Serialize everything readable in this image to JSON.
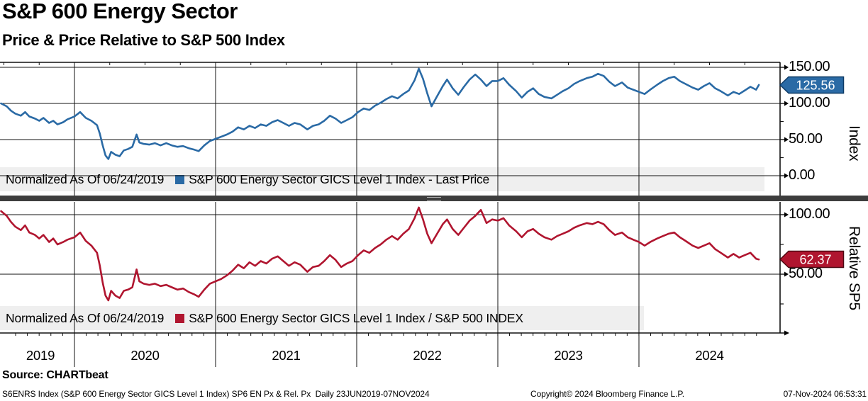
{
  "header": {
    "title": "S&P 600 Energy Sector",
    "subtitle": "Price & Price Relative to S&P 500 Index"
  },
  "xaxis": {
    "year_labels": [
      "2019",
      "2020",
      "2021",
      "2022",
      "2023",
      "2024"
    ],
    "gridline_years": [
      2020,
      2021,
      2022,
      2023,
      2024
    ],
    "range_note": "23JUN2019-07NOV2024"
  },
  "footer": {
    "source": "Source: CHARTbeat",
    "ticker_line": "S6ENRS Index (S&P 600 Energy Sector GICS Level 1 Index) SP6 EN Px & Rel. Px  Daily 23JUN2019-07NOV2024",
    "copyright": "Copyright© 2024 Bloomberg Finance L.P.",
    "timestamp": "07-Nov-2024 06:53:31"
  },
  "chart_data": [
    {
      "type": "line",
      "panel": "price",
      "axis_title": "Index",
      "legend_normalized": "Normalized As Of 06/24/2019",
      "legend_series": "S&P 600 Energy Sector GICS Level 1 Index - Last Price",
      "color": "#2a6aa5",
      "badge_stroke": "#0d3a66",
      "last_value": 125.56,
      "last_label": "125.56",
      "x_unit": "decimal_year",
      "x_range": [
        2019.48,
        2024.85
      ],
      "ylim": [
        -27,
        157
      ],
      "yticks": [
        {
          "v": 150,
          "label": "150.00"
        },
        {
          "v": 100,
          "label": "100.00"
        },
        {
          "v": 50,
          "label": "50.00"
        },
        {
          "v": 0,
          "label": "0.00"
        }
      ],
      "yticks_minor": [
        125,
        75,
        25
      ],
      "points": [
        [
          2019.48,
          100
        ],
        [
          2019.52,
          96
        ],
        [
          2019.55,
          90
        ],
        [
          2019.58,
          86
        ],
        [
          2019.62,
          83
        ],
        [
          2019.65,
          88
        ],
        [
          2019.68,
          82
        ],
        [
          2019.72,
          79
        ],
        [
          2019.75,
          76
        ],
        [
          2019.78,
          80
        ],
        [
          2019.82,
          73
        ],
        [
          2019.85,
          76
        ],
        [
          2019.88,
          71
        ],
        [
          2019.92,
          74
        ],
        [
          2019.95,
          78
        ],
        [
          2020.0,
          82
        ],
        [
          2020.04,
          88
        ],
        [
          2020.08,
          80
        ],
        [
          2020.12,
          76
        ],
        [
          2020.16,
          70
        ],
        [
          2020.18,
          58
        ],
        [
          2020.2,
          42
        ],
        [
          2020.22,
          28
        ],
        [
          2020.24,
          23
        ],
        [
          2020.26,
          33
        ],
        [
          2020.29,
          29
        ],
        [
          2020.32,
          27
        ],
        [
          2020.35,
          35
        ],
        [
          2020.38,
          37
        ],
        [
          2020.41,
          40
        ],
        [
          2020.44,
          57
        ],
        [
          2020.46,
          46
        ],
        [
          2020.49,
          44
        ],
        [
          2020.53,
          43
        ],
        [
          2020.57,
          45
        ],
        [
          2020.61,
          42
        ],
        [
          2020.65,
          45
        ],
        [
          2020.69,
          42
        ],
        [
          2020.73,
          40
        ],
        [
          2020.77,
          41
        ],
        [
          2020.81,
          38
        ],
        [
          2020.85,
          36
        ],
        [
          2020.88,
          34
        ],
        [
          2020.92,
          42
        ],
        [
          2020.96,
          48
        ],
        [
          2021.0,
          51
        ],
        [
          2021.04,
          54
        ],
        [
          2021.08,
          57
        ],
        [
          2021.12,
          61
        ],
        [
          2021.16,
          67
        ],
        [
          2021.2,
          64
        ],
        [
          2021.24,
          69
        ],
        [
          2021.28,
          66
        ],
        [
          2021.32,
          71
        ],
        [
          2021.36,
          69
        ],
        [
          2021.4,
          74
        ],
        [
          2021.44,
          77
        ],
        [
          2021.48,
          73
        ],
        [
          2021.52,
          69
        ],
        [
          2021.56,
          73
        ],
        [
          2021.6,
          71
        ],
        [
          2021.65,
          64
        ],
        [
          2021.69,
          69
        ],
        [
          2021.73,
          71
        ],
        [
          2021.77,
          76
        ],
        [
          2021.81,
          83
        ],
        [
          2021.85,
          79
        ],
        [
          2021.89,
          73
        ],
        [
          2021.93,
          77
        ],
        [
          2021.97,
          81
        ],
        [
          2022.01,
          88
        ],
        [
          2022.05,
          93
        ],
        [
          2022.09,
          91
        ],
        [
          2022.13,
          97
        ],
        [
          2022.17,
          101
        ],
        [
          2022.21,
          106
        ],
        [
          2022.25,
          110
        ],
        [
          2022.29,
          107
        ],
        [
          2022.33,
          113
        ],
        [
          2022.37,
          118
        ],
        [
          2022.41,
          132
        ],
        [
          2022.44,
          148
        ],
        [
          2022.47,
          134
        ],
        [
          2022.5,
          114
        ],
        [
          2022.53,
          96
        ],
        [
          2022.57,
          110
        ],
        [
          2022.61,
          124
        ],
        [
          2022.64,
          133
        ],
        [
          2022.68,
          121
        ],
        [
          2022.72,
          112
        ],
        [
          2022.76,
          123
        ],
        [
          2022.8,
          133
        ],
        [
          2022.84,
          140
        ],
        [
          2022.88,
          133
        ],
        [
          2022.92,
          124
        ],
        [
          2022.96,
          131
        ],
        [
          2023.0,
          131
        ],
        [
          2023.04,
          135
        ],
        [
          2023.08,
          126
        ],
        [
          2023.13,
          117
        ],
        [
          2023.17,
          108
        ],
        [
          2023.21,
          116
        ],
        [
          2023.25,
          121
        ],
        [
          2023.29,
          113
        ],
        [
          2023.33,
          109
        ],
        [
          2023.38,
          107
        ],
        [
          2023.42,
          112
        ],
        [
          2023.46,
          117
        ],
        [
          2023.5,
          121
        ],
        [
          2023.54,
          127
        ],
        [
          2023.58,
          131
        ],
        [
          2023.63,
          135
        ],
        [
          2023.67,
          137
        ],
        [
          2023.71,
          141
        ],
        [
          2023.75,
          138
        ],
        [
          2023.79,
          130
        ],
        [
          2023.83,
          124
        ],
        [
          2023.88,
          129
        ],
        [
          2023.92,
          122
        ],
        [
          2023.96,
          119
        ],
        [
          2024.0,
          116
        ],
        [
          2024.04,
          113
        ],
        [
          2024.08,
          119
        ],
        [
          2024.13,
          126
        ],
        [
          2024.17,
          131
        ],
        [
          2024.21,
          135
        ],
        [
          2024.25,
          137
        ],
        [
          2024.29,
          131
        ],
        [
          2024.33,
          127
        ],
        [
          2024.38,
          122
        ],
        [
          2024.42,
          119
        ],
        [
          2024.46,
          124
        ],
        [
          2024.5,
          128
        ],
        [
          2024.54,
          121
        ],
        [
          2024.58,
          117
        ],
        [
          2024.63,
          111
        ],
        [
          2024.67,
          116
        ],
        [
          2024.71,
          113
        ],
        [
          2024.75,
          118
        ],
        [
          2024.79,
          123
        ],
        [
          2024.83,
          119
        ],
        [
          2024.85,
          125.56
        ]
      ]
    },
    {
      "type": "line",
      "panel": "relative",
      "axis_title": "Relative SP5",
      "legend_normalized": "Normalized As Of 06/24/2019",
      "legend_series": "S&P 600 Energy Sector GICS Level 1 Index / S&P 500 INDEX",
      "color": "#b0152f",
      "badge_stroke": "#4d0812",
      "last_value": 62.37,
      "last_label": "62.37",
      "x_unit": "decimal_year",
      "x_range": [
        2019.48,
        2024.85
      ],
      "ylim": [
        0,
        111
      ],
      "yticks": [
        {
          "v": 100,
          "label": "100.00"
        },
        {
          "v": 50,
          "label": "50.00"
        }
      ],
      "yticks_minor": [
        75,
        25
      ],
      "points": [
        [
          2019.48,
          103
        ],
        [
          2019.52,
          99
        ],
        [
          2019.55,
          94
        ],
        [
          2019.58,
          90
        ],
        [
          2019.62,
          87
        ],
        [
          2019.65,
          91
        ],
        [
          2019.68,
          85
        ],
        [
          2019.72,
          83
        ],
        [
          2019.75,
          80
        ],
        [
          2019.78,
          83
        ],
        [
          2019.82,
          77
        ],
        [
          2019.85,
          80
        ],
        [
          2019.88,
          75
        ],
        [
          2019.92,
          77
        ],
        [
          2019.95,
          79
        ],
        [
          2020.0,
          81
        ],
        [
          2020.04,
          85
        ],
        [
          2020.08,
          78
        ],
        [
          2020.12,
          74
        ],
        [
          2020.16,
          68
        ],
        [
          2020.18,
          57
        ],
        [
          2020.2,
          43
        ],
        [
          2020.22,
          32
        ],
        [
          2020.24,
          28
        ],
        [
          2020.26,
          36
        ],
        [
          2020.29,
          32
        ],
        [
          2020.32,
          30
        ],
        [
          2020.35,
          36
        ],
        [
          2020.38,
          37
        ],
        [
          2020.41,
          39
        ],
        [
          2020.44,
          54
        ],
        [
          2020.46,
          44
        ],
        [
          2020.49,
          42
        ],
        [
          2020.53,
          41
        ],
        [
          2020.57,
          42
        ],
        [
          2020.61,
          40
        ],
        [
          2020.65,
          41
        ],
        [
          2020.69,
          39
        ],
        [
          2020.73,
          37
        ],
        [
          2020.77,
          38
        ],
        [
          2020.81,
          35
        ],
        [
          2020.85,
          33
        ],
        [
          2020.88,
          31
        ],
        [
          2020.92,
          37
        ],
        [
          2020.96,
          42
        ],
        [
          2021.0,
          44
        ],
        [
          2021.04,
          46
        ],
        [
          2021.08,
          49
        ],
        [
          2021.12,
          53
        ],
        [
          2021.16,
          58
        ],
        [
          2021.2,
          55
        ],
        [
          2021.24,
          60
        ],
        [
          2021.28,
          57
        ],
        [
          2021.32,
          61
        ],
        [
          2021.36,
          59
        ],
        [
          2021.4,
          63
        ],
        [
          2021.44,
          65
        ],
        [
          2021.48,
          61
        ],
        [
          2021.52,
          57
        ],
        [
          2021.56,
          60
        ],
        [
          2021.6,
          58
        ],
        [
          2021.65,
          52
        ],
        [
          2021.69,
          56
        ],
        [
          2021.73,
          57
        ],
        [
          2021.77,
          61
        ],
        [
          2021.81,
          66
        ],
        [
          2021.85,
          62
        ],
        [
          2021.89,
          56
        ],
        [
          2021.93,
          59
        ],
        [
          2021.97,
          61
        ],
        [
          2022.01,
          66
        ],
        [
          2022.05,
          70
        ],
        [
          2022.09,
          68
        ],
        [
          2022.13,
          72
        ],
        [
          2022.17,
          75
        ],
        [
          2022.21,
          79
        ],
        [
          2022.25,
          82
        ],
        [
          2022.29,
          79
        ],
        [
          2022.33,
          84
        ],
        [
          2022.37,
          88
        ],
        [
          2022.41,
          97
        ],
        [
          2022.44,
          106
        ],
        [
          2022.47,
          96
        ],
        [
          2022.5,
          84
        ],
        [
          2022.53,
          76
        ],
        [
          2022.57,
          84
        ],
        [
          2022.61,
          92
        ],
        [
          2022.64,
          96
        ],
        [
          2022.68,
          88
        ],
        [
          2022.72,
          83
        ],
        [
          2022.76,
          89
        ],
        [
          2022.8,
          95
        ],
        [
          2022.84,
          99
        ],
        [
          2022.88,
          104
        ],
        [
          2022.92,
          93
        ],
        [
          2022.96,
          96
        ],
        [
          2023.0,
          95
        ],
        [
          2023.04,
          97
        ],
        [
          2023.08,
          91
        ],
        [
          2023.13,
          86
        ],
        [
          2023.17,
          81
        ],
        [
          2023.21,
          86
        ],
        [
          2023.25,
          88
        ],
        [
          2023.29,
          84
        ],
        [
          2023.33,
          81
        ],
        [
          2023.38,
          79
        ],
        [
          2023.42,
          82
        ],
        [
          2023.46,
          84
        ],
        [
          2023.5,
          86
        ],
        [
          2023.54,
          89
        ],
        [
          2023.58,
          91
        ],
        [
          2023.63,
          93
        ],
        [
          2023.67,
          92
        ],
        [
          2023.71,
          94
        ],
        [
          2023.75,
          92
        ],
        [
          2023.79,
          87
        ],
        [
          2023.83,
          83
        ],
        [
          2023.88,
          85
        ],
        [
          2023.92,
          81
        ],
        [
          2023.96,
          79
        ],
        [
          2024.0,
          77
        ],
        [
          2024.04,
          74
        ],
        [
          2024.08,
          77
        ],
        [
          2024.13,
          80
        ],
        [
          2024.17,
          82
        ],
        [
          2024.21,
          84
        ],
        [
          2024.25,
          85
        ],
        [
          2024.29,
          81
        ],
        [
          2024.33,
          78
        ],
        [
          2024.38,
          74
        ],
        [
          2024.42,
          72
        ],
        [
          2024.46,
          74
        ],
        [
          2024.5,
          76
        ],
        [
          2024.54,
          71
        ],
        [
          2024.58,
          68
        ],
        [
          2024.63,
          64
        ],
        [
          2024.67,
          67
        ],
        [
          2024.71,
          64
        ],
        [
          2024.75,
          66
        ],
        [
          2024.79,
          68
        ],
        [
          2024.83,
          63
        ],
        [
          2024.85,
          62.37
        ]
      ]
    }
  ]
}
